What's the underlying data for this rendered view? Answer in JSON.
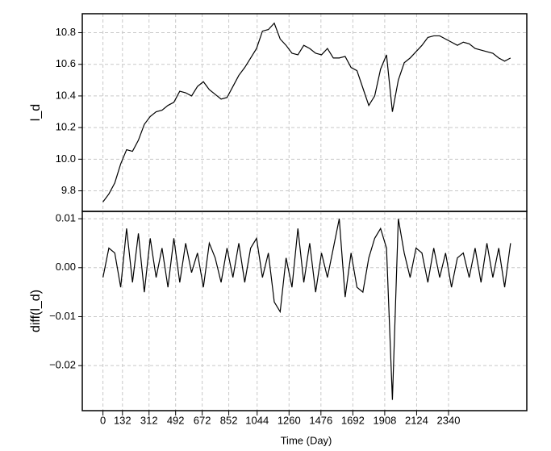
{
  "chart_data": [
    {
      "type": "line",
      "ylabel": "l_d",
      "color": "#000000",
      "grid": true,
      "x": [
        0,
        40,
        80,
        120,
        160,
        200,
        240,
        280,
        320,
        360,
        400,
        440,
        480,
        520,
        560,
        600,
        640,
        680,
        720,
        760,
        800,
        840,
        880,
        920,
        960,
        1000,
        1040,
        1080,
        1120,
        1160,
        1200,
        1240,
        1280,
        1320,
        1360,
        1400,
        1440,
        1480,
        1520,
        1560,
        1600,
        1640,
        1680,
        1720,
        1760,
        1800,
        1840,
        1880,
        1920,
        1960,
        2000,
        2040,
        2080,
        2120,
        2160,
        2200,
        2240,
        2280,
        2320,
        2360,
        2400,
        2440,
        2480,
        2520,
        2560,
        2600,
        2640,
        2680,
        2720,
        2760
      ],
      "values": [
        9.73,
        9.78,
        9.85,
        9.97,
        10.06,
        10.05,
        10.12,
        10.22,
        10.27,
        10.3,
        10.31,
        10.34,
        10.36,
        10.43,
        10.42,
        10.4,
        10.46,
        10.49,
        10.44,
        10.41,
        10.38,
        10.39,
        10.46,
        10.53,
        10.58,
        10.64,
        10.7,
        10.81,
        10.82,
        10.86,
        10.76,
        10.72,
        10.67,
        10.66,
        10.72,
        10.7,
        10.67,
        10.66,
        10.7,
        10.64,
        10.64,
        10.65,
        10.58,
        10.56,
        10.45,
        10.34,
        10.4,
        10.57,
        10.66,
        10.3,
        10.5,
        10.61,
        10.64,
        10.68,
        10.72,
        10.77,
        10.78,
        10.78,
        10.76,
        10.74,
        10.72,
        10.74,
        10.73,
        10.7,
        10.69,
        10.68,
        10.67,
        10.64,
        10.62,
        10.64
      ],
      "xlim": [
        -140,
        2870
      ],
      "ylim": [
        9.67,
        10.92
      ],
      "yticks": [
        9.8,
        {
          "value": 10,
          "label": "10.0"
        },
        10.2,
        10.4,
        10.6,
        10.8
      ]
    },
    {
      "type": "line",
      "ylabel": "diff(l_d)",
      "xlabel": "Time (Day)",
      "color": "#000000",
      "grid": true,
      "x": [
        0,
        40,
        80,
        120,
        160,
        200,
        240,
        280,
        320,
        360,
        400,
        440,
        480,
        520,
        560,
        600,
        640,
        680,
        720,
        760,
        800,
        840,
        880,
        920,
        960,
        1000,
        1040,
        1080,
        1120,
        1160,
        1200,
        1240,
        1280,
        1320,
        1360,
        1400,
        1440,
        1480,
        1520,
        1560,
        1600,
        1640,
        1680,
        1720,
        1760,
        1800,
        1840,
        1880,
        1920,
        1960,
        2000,
        2040,
        2080,
        2120,
        2160,
        2200,
        2240,
        2280,
        2320,
        2360,
        2400,
        2440,
        2480,
        2520,
        2560,
        2600,
        2640,
        2680,
        2720,
        2760
      ],
      "values": [
        -0.002,
        0.004,
        0.003,
        -0.004,
        0.008,
        -0.003,
        0.007,
        -0.005,
        0.006,
        -0.002,
        0.004,
        -0.004,
        0.006,
        -0.003,
        0.005,
        -0.001,
        0.003,
        -0.004,
        0.005,
        0.002,
        -0.003,
        0.004,
        -0.002,
        0.005,
        -0.003,
        0.004,
        0.006,
        -0.002,
        0.003,
        -0.007,
        -0.009,
        0.002,
        -0.004,
        0.008,
        -0.003,
        0.005,
        -0.005,
        0.003,
        -0.002,
        0.004,
        0.01,
        -0.006,
        0.003,
        -0.004,
        -0.005,
        0.002,
        0.006,
        0.008,
        0.004,
        -0.027,
        0.01,
        0.003,
        -0.002,
        0.004,
        0.003,
        -0.003,
        0.004,
        -0.002,
        0.003,
        -0.004,
        0.002,
        0.003,
        -0.002,
        0.004,
        -0.003,
        0.005,
        -0.002,
        0.004,
        -0.004,
        0.005
      ],
      "xlim": [
        -140,
        2870
      ],
      "ylim": [
        -0.0292,
        0.0115
      ],
      "xticks": [
        0,
        132,
        312,
        492,
        672,
        852,
        1044,
        1260,
        1476,
        1692,
        1908,
        2124,
        2340
      ],
      "yticks": [
        {
          "value": -0.02,
          "label": "−0.02"
        },
        {
          "value": -0.01,
          "label": "−0.01"
        },
        {
          "value": 0,
          "label": "0.00"
        },
        0.01
      ]
    }
  ]
}
